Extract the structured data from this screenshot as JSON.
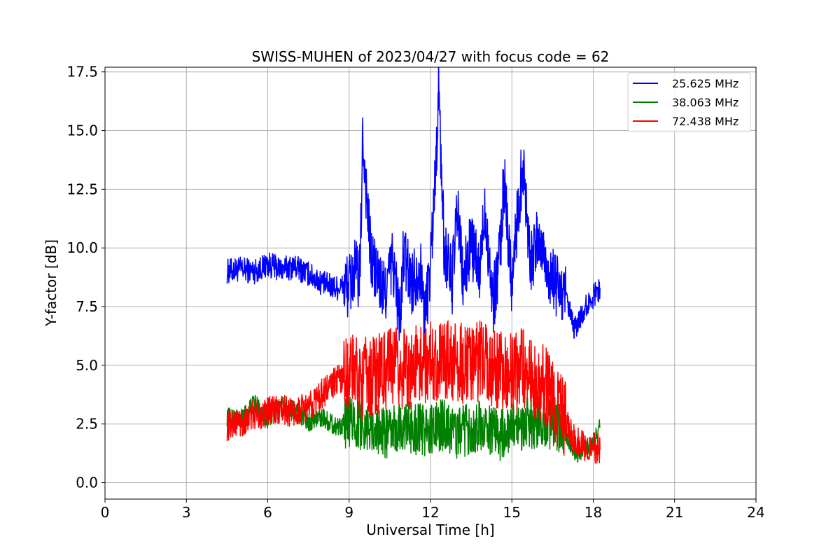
{
  "chart_data": {
    "type": "line",
    "title": "SWISS-MUHEN of 2023/04/27 with focus code = 62",
    "xlabel": "Universal Time [h]",
    "ylabel": "Y-factor [dB]",
    "xlim": [
      0,
      24
    ],
    "ylim": [
      -0.7,
      17.7
    ],
    "xticks": [
      0,
      3,
      6,
      9,
      12,
      15,
      18,
      21,
      24
    ],
    "xtick_labels": [
      "0",
      "3",
      "6",
      "9",
      "12",
      "15",
      "18",
      "21",
      "24"
    ],
    "yticks": [
      0,
      2.5,
      5,
      7.5,
      10,
      12.5,
      15,
      17.5
    ],
    "ytick_labels": [
      "0.0",
      "2.5",
      "5.0",
      "7.5",
      "10.0",
      "12.5",
      "15.0",
      "17.5"
    ],
    "grid": true,
    "legend_position": "top-right",
    "series": [
      {
        "name": "25.625 MHz",
        "color": "#0000ff",
        "x": [
          4.5,
          5.0,
          5.5,
          6.0,
          6.5,
          7.0,
          7.5,
          8.0,
          8.5,
          9.0,
          9.2,
          9.4,
          9.5,
          9.8,
          10.0,
          10.3,
          10.6,
          10.9,
          11.0,
          11.3,
          11.6,
          11.8,
          12.0,
          12.2,
          12.3,
          12.5,
          12.8,
          13.0,
          13.2,
          13.5,
          13.8,
          14.0,
          14.3,
          14.6,
          14.7,
          15.0,
          15.4,
          15.7,
          16.0,
          16.4,
          16.7,
          17.0,
          17.3,
          17.6,
          17.9,
          18.25
        ],
        "y": [
          9.0,
          9.1,
          9.0,
          9.3,
          9.1,
          9.2,
          8.9,
          8.5,
          8.3,
          8.4,
          9.0,
          8.7,
          14.7,
          9.6,
          8.9,
          8.0,
          9.5,
          6.8,
          9.8,
          8.5,
          9.3,
          7.0,
          9.4,
          13.6,
          16.9,
          10.0,
          8.6,
          11.6,
          8.5,
          10.3,
          8.7,
          11.9,
          7.6,
          10.2,
          13.0,
          8.6,
          13.7,
          9.4,
          10.4,
          8.8,
          8.3,
          7.8,
          6.5,
          7.2,
          7.8,
          8.3
        ]
      },
      {
        "name": "38.063 MHz",
        "color": "#008000",
        "x": [
          4.5,
          5.0,
          5.5,
          6.0,
          6.5,
          7.0,
          7.5,
          8.0,
          8.5,
          9.0,
          9.5,
          10.0,
          10.5,
          11.0,
          11.5,
          12.0,
          12.5,
          13.0,
          13.5,
          14.0,
          14.5,
          15.0,
          15.5,
          16.0,
          16.5,
          17.0,
          17.3,
          17.6,
          18.0,
          18.25
        ],
        "y": [
          2.8,
          2.7,
          3.4,
          2.7,
          3.3,
          3.1,
          2.6,
          2.8,
          2.4,
          2.6,
          2.5,
          2.3,
          2.1,
          2.4,
          2.3,
          2.2,
          2.5,
          2.1,
          2.3,
          2.4,
          2.0,
          2.4,
          2.5,
          2.6,
          2.5,
          2.0,
          1.1,
          1.4,
          1.6,
          2.4
        ]
      },
      {
        "name": "72.438 MHz",
        "color": "#ff0000",
        "x": [
          4.5,
          5.0,
          5.5,
          6.0,
          6.5,
          7.0,
          7.5,
          8.0,
          8.5,
          9.0,
          9.5,
          10.0,
          10.5,
          11.0,
          11.5,
          12.0,
          12.5,
          13.0,
          13.5,
          14.0,
          14.5,
          15.0,
          15.5,
          16.0,
          16.5,
          17.0,
          17.3,
          17.6,
          18.0,
          18.25
        ],
        "y": [
          2.4,
          2.6,
          2.9,
          3.0,
          3.1,
          3.0,
          3.2,
          3.8,
          4.3,
          4.8,
          4.4,
          4.6,
          4.9,
          4.8,
          5.0,
          5.2,
          5.3,
          5.1,
          5.0,
          5.2,
          4.8,
          4.6,
          4.9,
          4.3,
          3.7,
          2.5,
          1.8,
          1.6,
          1.5,
          1.4
        ]
      }
    ]
  }
}
